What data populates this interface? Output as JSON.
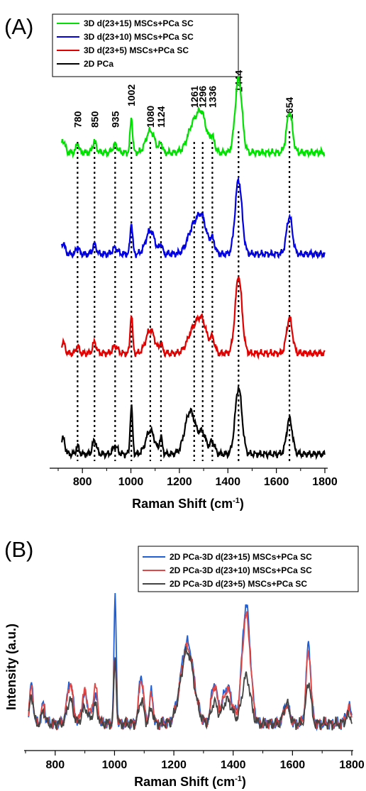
{
  "figure": {
    "panel_a_label": "(A)",
    "panel_b_label": "(B)"
  },
  "chart_data": [
    {
      "type": "line",
      "panel": "(A)",
      "title": "",
      "xlabel": "Raman Shift (cm",
      "xlabel_superscript": "-1",
      "xlabel_suffix": ")",
      "ylabel": "",
      "xlim": [
        700,
        1800
      ],
      "xticks": [
        800,
        1000,
        1200,
        1400,
        1600,
        1800
      ],
      "stacked_offset": true,
      "peak_markers": [
        780,
        850,
        935,
        1002,
        1080,
        1124,
        1261,
        1296,
        1336,
        1444,
        1654
      ],
      "legend": {
        "position": "top-left",
        "frame": true
      },
      "series": [
        {
          "name": "3D d(23+15) MSCs+PCa SC",
          "color": "#00e000",
          "offset": 3,
          "amp": 1.0,
          "peaks": [
            [
              720,
              0.16,
              8
            ],
            [
              780,
              0.12,
              6
            ],
            [
              850,
              0.14,
              8
            ],
            [
              935,
              0.1,
              10
            ],
            [
              1002,
              0.45,
              5
            ],
            [
              1080,
              0.28,
              18
            ],
            [
              1124,
              0.12,
              6
            ],
            [
              1261,
              0.38,
              25
            ],
            [
              1296,
              0.36,
              18
            ],
            [
              1336,
              0.18,
              10
            ],
            [
              1444,
              0.95,
              14
            ],
            [
              1654,
              0.52,
              12
            ]
          ]
        },
        {
          "name": "3D d(23+10) MSCs+PCa SC",
          "color": "#0000e0",
          "offset": 2,
          "amp": 1.0,
          "peaks": [
            [
              720,
              0.14,
              8
            ],
            [
              780,
              0.1,
              6
            ],
            [
              850,
              0.12,
              8
            ],
            [
              935,
              0.08,
              10
            ],
            [
              1002,
              0.4,
              5
            ],
            [
              1080,
              0.3,
              18
            ],
            [
              1124,
              0.12,
              6
            ],
            [
              1261,
              0.36,
              25
            ],
            [
              1296,
              0.35,
              18
            ],
            [
              1336,
              0.18,
              10
            ],
            [
              1444,
              0.95,
              14
            ],
            [
              1654,
              0.48,
              12
            ]
          ]
        },
        {
          "name": "3D d(23+5) MSCs+PCa SC",
          "color": "#e00000",
          "offset": 1,
          "amp": 1.0,
          "peaks": [
            [
              720,
              0.14,
              8
            ],
            [
              780,
              0.1,
              6
            ],
            [
              850,
              0.14,
              8
            ],
            [
              935,
              0.1,
              10
            ],
            [
              1002,
              0.5,
              5
            ],
            [
              1080,
              0.3,
              18
            ],
            [
              1124,
              0.12,
              6
            ],
            [
              1261,
              0.32,
              25
            ],
            [
              1296,
              0.32,
              18
            ],
            [
              1336,
              0.18,
              10
            ],
            [
              1444,
              0.98,
              14
            ],
            [
              1654,
              0.45,
              12
            ]
          ]
        },
        {
          "name": "2D PCa",
          "color": "#000000",
          "offset": 0,
          "amp": 1.0,
          "peaks": [
            [
              720,
              0.2,
              8
            ],
            [
              780,
              0.1,
              6
            ],
            [
              850,
              0.18,
              8
            ],
            [
              935,
              0.1,
              10
            ],
            [
              1002,
              0.6,
              5
            ],
            [
              1080,
              0.3,
              18
            ],
            [
              1124,
              0.2,
              6
            ],
            [
              1245,
              0.55,
              22
            ],
            [
              1296,
              0.25,
              15
            ],
            [
              1336,
              0.16,
              10
            ],
            [
              1444,
              0.85,
              14
            ],
            [
              1654,
              0.45,
              12
            ]
          ]
        }
      ]
    },
    {
      "type": "line",
      "panel": "(B)",
      "title": "",
      "xlabel": "Raman Shift (cm",
      "xlabel_superscript": "-1",
      "xlabel_suffix": ")",
      "ylabel": "Intensity (a.u.)",
      "xlim": [
        700,
        1800
      ],
      "xticks": [
        800,
        1000,
        1200,
        1400,
        1600,
        1800
      ],
      "legend": {
        "position": "top-right",
        "frame": true
      },
      "series": [
        {
          "name": "2D PCa-3D d(23+15) MSCs+PCa SC",
          "color": "#1f5fd6",
          "peaks": [
            [
              720,
              0.3,
              6
            ],
            [
              760,
              0.15,
              6
            ],
            [
              850,
              0.32,
              10
            ],
            [
              900,
              0.22,
              10
            ],
            [
              935,
              0.22,
              8
            ],
            [
              1002,
              0.95,
              4
            ],
            [
              1090,
              0.36,
              8
            ],
            [
              1124,
              0.24,
              6
            ],
            [
              1245,
              0.62,
              22
            ],
            [
              1336,
              0.3,
              10
            ],
            [
              1380,
              0.28,
              16
            ],
            [
              1444,
              0.9,
              14
            ],
            [
              1580,
              0.15,
              10
            ],
            [
              1654,
              0.6,
              8
            ],
            [
              1790,
              0.12,
              10
            ]
          ]
        },
        {
          "name": "2D PCa-3D d(23+10) MSCs+PCa SC",
          "color": "#e04848",
          "peaks": [
            [
              720,
              0.28,
              6
            ],
            [
              760,
              0.14,
              6
            ],
            [
              850,
              0.3,
              10
            ],
            [
              900,
              0.24,
              10
            ],
            [
              935,
              0.28,
              8
            ],
            [
              1002,
              0.5,
              4
            ],
            [
              1090,
              0.34,
              8
            ],
            [
              1124,
              0.22,
              6
            ],
            [
              1245,
              0.58,
              22
            ],
            [
              1336,
              0.28,
              10
            ],
            [
              1380,
              0.26,
              16
            ],
            [
              1444,
              0.82,
              14
            ],
            [
              1580,
              0.14,
              10
            ],
            [
              1654,
              0.55,
              8
            ],
            [
              1790,
              0.1,
              10
            ]
          ]
        },
        {
          "name": "2D PCa-3D d(23+5) MSCs+PCa SC",
          "color": "#444444",
          "peaks": [
            [
              720,
              0.22,
              6
            ],
            [
              760,
              0.1,
              6
            ],
            [
              850,
              0.18,
              10
            ],
            [
              900,
              0.12,
              10
            ],
            [
              935,
              0.14,
              8
            ],
            [
              1002,
              0.5,
              4
            ],
            [
              1090,
              0.18,
              8
            ],
            [
              1124,
              0.12,
              6
            ],
            [
              1245,
              0.55,
              22
            ],
            [
              1336,
              0.16,
              10
            ],
            [
              1380,
              0.18,
              16
            ],
            [
              1444,
              0.36,
              14
            ],
            [
              1580,
              0.15,
              10
            ],
            [
              1654,
              0.32,
              8
            ],
            [
              1790,
              0.06,
              10
            ]
          ]
        }
      ]
    }
  ]
}
